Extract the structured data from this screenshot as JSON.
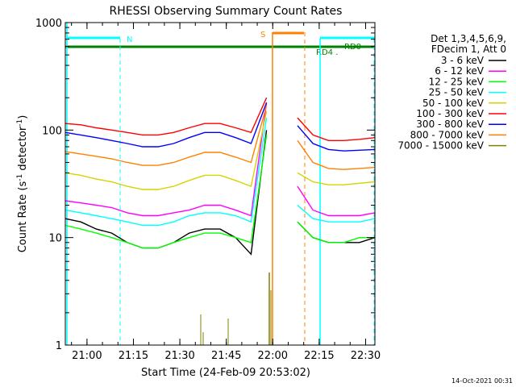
{
  "chart_data": {
    "type": "line",
    "title": "RHESSI Observing Summary Count Rates",
    "xlabel": "Start Time (24-Feb-09 20:53:02)",
    "ylabel": "Count Rate (s⁻¹ detector⁻¹)",
    "ylabel_main": "Count Rate (s",
    "ylabel_sup1": "-1",
    "ylabel_mid": " detector",
    "ylabel_sup2": "-1",
    "ylabel_end": ")",
    "footer": "14-Oct-2021 00:31",
    "x_unit": "minutes since 20:53:02",
    "xlim": [
      0,
      100
    ],
    "ylim": [
      1,
      1000
    ],
    "yscale": "log",
    "x_ticks": [
      {
        "label": "21:00",
        "value": 7
      },
      {
        "label": "21:15",
        "value": 22
      },
      {
        "label": "21:30",
        "value": 37
      },
      {
        "label": "21:45",
        "value": 52
      },
      {
        "label": "22:00",
        "value": 67
      },
      {
        "label": "22:15",
        "value": 82
      },
      {
        "label": "22:30",
        "value": 97
      }
    ],
    "y_ticks": [
      {
        "label": "1",
        "value": 1
      },
      {
        "label": "10",
        "value": 10
      },
      {
        "label": "100",
        "value": 100
      },
      {
        "label": "1000",
        "value": 1000
      }
    ],
    "legend": {
      "placement": "right",
      "header": [
        "Det 1,3,4,5,6,9,",
        "FDecim 1, Att 0"
      ]
    },
    "series": [
      {
        "name": "3 - 6 keV",
        "color": "#000000",
        "x": [
          0,
          5,
          10,
          15,
          20,
          25,
          30,
          35,
          40,
          45,
          50,
          55,
          60,
          65,
          67,
          73,
          75,
          80,
          85,
          90,
          95,
          100
        ],
        "values": [
          15,
          14,
          12,
          11,
          9,
          8,
          8,
          9,
          11,
          12,
          12,
          10,
          7,
          100,
          null,
          null,
          14,
          10,
          9,
          9,
          9,
          10
        ]
      },
      {
        "name": "6 - 12 keV",
        "color": "#ff00ff",
        "x": [
          0,
          5,
          10,
          15,
          20,
          25,
          30,
          35,
          40,
          45,
          50,
          55,
          60,
          65,
          67,
          73,
          75,
          80,
          85,
          90,
          95,
          100
        ],
        "values": [
          22,
          21,
          20,
          19,
          17,
          16,
          16,
          17,
          18,
          20,
          20,
          18,
          16,
          180,
          null,
          null,
          30,
          18,
          16,
          16,
          16,
          17
        ]
      },
      {
        "name": "12 - 25 keV",
        "color": "#00ff00",
        "x": [
          0,
          5,
          10,
          15,
          20,
          25,
          30,
          35,
          40,
          45,
          50,
          55,
          60,
          65,
          67,
          73,
          75,
          80,
          85,
          90,
          95,
          100
        ],
        "values": [
          13,
          12,
          11,
          10,
          9,
          8,
          8,
          9,
          10,
          11,
          11,
          10,
          9,
          90,
          null,
          null,
          14,
          10,
          9,
          9,
          10,
          10
        ]
      },
      {
        "name": "25 - 50 keV",
        "color": "#00ffff",
        "x": [
          0,
          5,
          10,
          15,
          20,
          25,
          30,
          35,
          40,
          45,
          50,
          55,
          60,
          65,
          67,
          73,
          75,
          80,
          85,
          90,
          95,
          100
        ],
        "values": [
          18,
          17,
          16,
          15,
          14,
          13,
          13,
          14,
          16,
          17,
          17,
          16,
          14,
          130,
          null,
          null,
          20,
          15,
          14,
          14,
          14,
          15
        ]
      },
      {
        "name": "50 - 100 keV",
        "color": "#d4d400",
        "x": [
          0,
          5,
          10,
          15,
          20,
          25,
          30,
          35,
          40,
          45,
          50,
          55,
          60,
          65,
          67,
          73,
          75,
          80,
          85,
          90,
          95,
          100
        ],
        "values": [
          40,
          38,
          35,
          33,
          30,
          28,
          28,
          30,
          34,
          38,
          38,
          34,
          30,
          150,
          null,
          null,
          40,
          33,
          31,
          31,
          32,
          33
        ]
      },
      {
        "name": "100 - 300 keV",
        "color": "#ff0000",
        "x": [
          0,
          5,
          10,
          15,
          20,
          25,
          30,
          35,
          40,
          45,
          50,
          55,
          60,
          65,
          67,
          73,
          75,
          80,
          85,
          90,
          95,
          100
        ],
        "values": [
          115,
          112,
          105,
          100,
          95,
          90,
          90,
          95,
          105,
          115,
          115,
          105,
          95,
          200,
          null,
          null,
          130,
          90,
          80,
          80,
          82,
          85
        ]
      },
      {
        "name": "300 - 800 keV",
        "color": "#0000ff",
        "x": [
          0,
          5,
          10,
          15,
          20,
          25,
          30,
          35,
          40,
          45,
          50,
          55,
          60,
          65,
          67,
          73,
          75,
          80,
          85,
          90,
          95,
          100
        ],
        "values": [
          95,
          90,
          85,
          80,
          75,
          70,
          70,
          75,
          85,
          95,
          95,
          85,
          75,
          180,
          null,
          null,
          110,
          75,
          66,
          64,
          65,
          66
        ]
      },
      {
        "name": "800 - 7000 keV",
        "color": "#ff8000",
        "x": [
          0,
          5,
          10,
          15,
          20,
          25,
          30,
          35,
          40,
          45,
          50,
          55,
          60,
          65,
          67,
          73,
          75,
          80,
          85,
          90,
          95,
          100
        ],
        "values": [
          63,
          60,
          57,
          54,
          50,
          47,
          47,
          50,
          56,
          62,
          62,
          56,
          50,
          170,
          null,
          null,
          80,
          50,
          44,
          43,
          44,
          45
        ]
      },
      {
        "name": "7000 - 15000 keV",
        "color": "#808000",
        "x": [
          0,
          5,
          10,
          15,
          20,
          25,
          30,
          35,
          40,
          45,
          50,
          55,
          60,
          65,
          67,
          73,
          75,
          80,
          85,
          90,
          95,
          100
        ],
        "values": [
          null,
          null,
          null,
          null,
          null,
          null,
          null,
          null,
          null,
          null,
          null,
          null,
          null,
          null,
          null,
          null,
          null,
          null,
          null,
          null,
          null,
          null
        ]
      }
    ],
    "annotations": [
      {
        "text": "N",
        "color": "#00ffff"
      },
      {
        "text": "S",
        "color": "#ff8000"
      },
      {
        "text": "RD4 .",
        "color": "#008000"
      },
      {
        "text": "RD0",
        "color": "#008000"
      }
    ]
  }
}
